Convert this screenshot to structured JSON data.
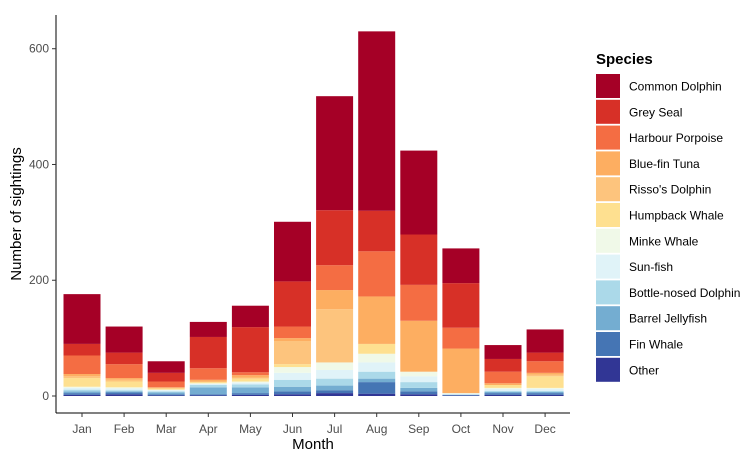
{
  "chart_data": {
    "type": "bar",
    "stacked": true,
    "categories": [
      "Jan",
      "Feb",
      "Mar",
      "Apr",
      "May",
      "Jun",
      "Jul",
      "Aug",
      "Sep",
      "Oct",
      "Nov",
      "Dec"
    ],
    "xlabel": "Month",
    "ylabel": "Number of sightings",
    "ylim": [
      0,
      665
    ],
    "yticks": [
      0,
      200,
      400,
      600
    ],
    "grid": false,
    "legend": {
      "title": "Species",
      "position": "right"
    },
    "series": [
      {
        "name": "Other",
        "color": "#313695",
        "values": [
          2,
          3,
          1,
          1,
          2,
          3,
          5,
          4,
          3,
          1,
          2,
          2
        ]
      },
      {
        "name": "Fin Whale",
        "color": "#4575b4",
        "values": [
          3,
          3,
          2,
          2,
          3,
          5,
          5,
          20,
          5,
          0,
          3,
          3
        ]
      },
      {
        "name": "Barrel Jellyfish",
        "color": "#74add1",
        "values": [
          3,
          2,
          3,
          12,
          10,
          8,
          8,
          6,
          6,
          1,
          2,
          2
        ]
      },
      {
        "name": "Bottle-nosed Dolphin",
        "color": "#abd9e9",
        "values": [
          3,
          2,
          2,
          4,
          5,
          12,
          12,
          12,
          10,
          1,
          2,
          2
        ]
      },
      {
        "name": "Sun-fish",
        "color": "#e0f3f8",
        "values": [
          3,
          3,
          2,
          2,
          3,
          12,
          15,
          16,
          10,
          1,
          3,
          3
        ]
      },
      {
        "name": "Minke Whale",
        "color": "#f0f9e8",
        "values": [
          2,
          2,
          1,
          1,
          2,
          10,
          13,
          15,
          8,
          1,
          2,
          2
        ]
      },
      {
        "name": "Humpback Whale",
        "color": "#fee090",
        "values": [
          15,
          10,
          2,
          2,
          5,
          5,
          0,
          17,
          0,
          0,
          5,
          20
        ]
      },
      {
        "name": "Risso's Dolphin",
        "color": "#fdc47d",
        "values": [
          3,
          3,
          1,
          1,
          2,
          40,
          92,
          0,
          0,
          0,
          0,
          3
        ]
      },
      {
        "name": "Blue-fin Tuna",
        "color": "#fdae61",
        "values": [
          4,
          3,
          1,
          3,
          4,
          5,
          33,
          82,
          88,
          77,
          3,
          3
        ]
      },
      {
        "name": "Harbour Porpoise",
        "color": "#f46d43",
        "values": [
          32,
          24,
          10,
          20,
          5,
          20,
          43,
          78,
          62,
          36,
          20,
          20
        ]
      },
      {
        "name": "Grey Seal",
        "color": "#d73027",
        "values": [
          20,
          20,
          15,
          54,
          78,
          78,
          95,
          70,
          87,
          77,
          22,
          15
        ]
      },
      {
        "name": "Common Dolphin",
        "color": "#a50026",
        "values": [
          86,
          45,
          20,
          26,
          37,
          103,
          197,
          310,
          145,
          60,
          24,
          40
        ]
      }
    ]
  }
}
